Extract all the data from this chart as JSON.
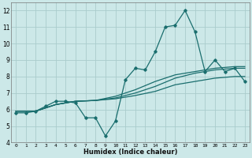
{
  "title": "",
  "xlabel": "Humidex (Indice chaleur)",
  "ylabel": "",
  "bg_color": "#cce8e8",
  "grid_color": "#aacccc",
  "line_color": "#1a6e6e",
  "xlim": [
    -0.5,
    23.5
  ],
  "ylim": [
    4,
    12.5
  ],
  "xticks": [
    0,
    1,
    2,
    3,
    4,
    5,
    6,
    7,
    8,
    9,
    10,
    11,
    12,
    13,
    14,
    15,
    16,
    17,
    18,
    19,
    20,
    21,
    22,
    23
  ],
  "yticks": [
    4,
    5,
    6,
    7,
    8,
    9,
    10,
    11,
    12
  ],
  "main_x": [
    0,
    1,
    2,
    3,
    4,
    5,
    6,
    7,
    8,
    9,
    10,
    11,
    12,
    13,
    14,
    15,
    16,
    17,
    18,
    19,
    20,
    21,
    22,
    23
  ],
  "main_y": [
    5.8,
    5.8,
    5.9,
    6.2,
    6.5,
    6.5,
    6.4,
    5.5,
    5.5,
    4.4,
    5.3,
    7.8,
    8.5,
    8.4,
    9.5,
    11.0,
    11.1,
    12.0,
    10.7,
    8.3,
    9.0,
    8.3,
    8.5,
    7.7
  ],
  "trend1_x": [
    0,
    2,
    4,
    6,
    8,
    10,
    12,
    14,
    16,
    18,
    20,
    22,
    23
  ],
  "trend1_y": [
    5.9,
    5.9,
    6.3,
    6.5,
    6.55,
    6.7,
    7.0,
    7.4,
    7.9,
    8.2,
    8.4,
    8.5,
    8.5
  ],
  "trend2_x": [
    0,
    2,
    4,
    6,
    8,
    10,
    12,
    14,
    16,
    18,
    20,
    22,
    23
  ],
  "trend2_y": [
    5.9,
    5.9,
    6.3,
    6.5,
    6.55,
    6.8,
    7.2,
    7.7,
    8.1,
    8.3,
    8.5,
    8.6,
    8.6
  ],
  "trend3_x": [
    0,
    2,
    4,
    6,
    8,
    10,
    12,
    14,
    16,
    18,
    20,
    22,
    23
  ],
  "trend3_y": [
    5.9,
    5.9,
    6.3,
    6.5,
    6.55,
    6.65,
    6.85,
    7.1,
    7.5,
    7.7,
    7.9,
    8.0,
    8.0
  ]
}
